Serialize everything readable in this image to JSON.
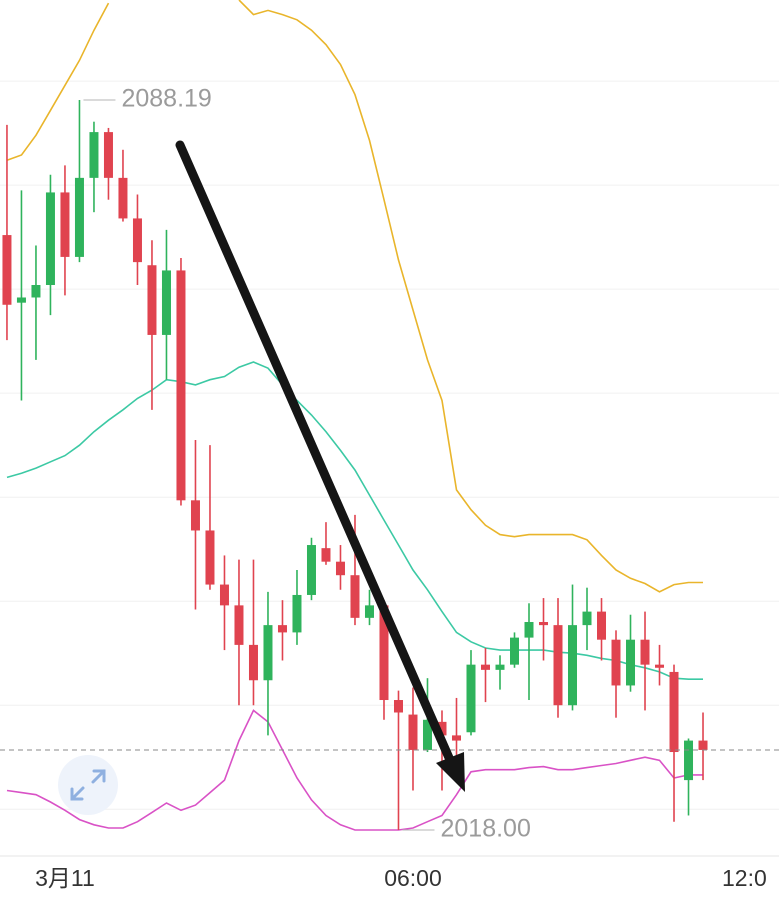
{
  "chart_data": {
    "type": "candlestick",
    "xlim": [
      -1.12,
      12.31
    ],
    "ylim": [
      2015.6,
      2097.8
    ],
    "xticks": [
      {
        "value": 0,
        "label": "3月11"
      },
      {
        "value": 6,
        "label": "06:00"
      },
      {
        "value": 12,
        "label": "12:0"
      }
    ],
    "yticks": [
      2020,
      2030,
      2040,
      2050,
      2060,
      2070,
      2080,
      2090
    ],
    "grid": true,
    "up_color": "#2fb35c",
    "down_color": "#e0434f",
    "x": [
      -1,
      -0.75,
      -0.5,
      -0.25,
      0,
      0.25,
      0.5,
      0.75,
      1,
      1.25,
      1.5,
      1.75,
      2,
      2.25,
      2.5,
      2.75,
      3,
      3.25,
      3.5,
      3.75,
      4,
      4.25,
      4.5,
      4.75,
      5,
      5.25,
      5.5,
      5.75,
      6,
      6.25,
      6.5,
      6.75,
      7,
      7.25,
      7.5,
      7.75,
      8,
      8.25,
      8.5,
      8.75,
      9,
      9.25,
      9.5,
      9.75,
      10,
      10.25,
      10.5,
      10.75,
      11
    ],
    "open": [
      2075.2,
      2068.7,
      2069.2,
      2070.4,
      2079.3,
      2073.1,
      2080.7,
      2085.1,
      2080.7,
      2076.8,
      2072.3,
      2065.6,
      2071.8,
      2049.7,
      2046.8,
      2041.6,
      2039.6,
      2035.8,
      2032.4,
      2037.7,
      2037.0,
      2040.6,
      2045.1,
      2043.8,
      2042.5,
      2038.4,
      2039.6,
      2030.5,
      2029.1,
      2025.7,
      2028.4,
      2027.1,
      2027.4,
      2033.9,
      2033.4,
      2033.9,
      2036.5,
      2038.0,
      2037.7,
      2030.0,
      2037.7,
      2039.0,
      2036.3,
      2031.9,
      2036.3,
      2033.9,
      2033.2,
      2022.8,
      2026.6
    ],
    "high": [
      2085.8,
      2079.5,
      2074.2,
      2081.0,
      2081.9,
      2088.19,
      2086.1,
      2085.5,
      2083.4,
      2079.1,
      2074.7,
      2075.7,
      2073.0,
      2055.5,
      2055.0,
      2044.4,
      2044.0,
      2044.0,
      2040.9,
      2040.1,
      2043.0,
      2046.1,
      2047.6,
      2045.4,
      2048.3,
      2041.1,
      2040.1,
      2031.4,
      2031.7,
      2032.6,
      2029.5,
      2030.7,
      2035.3,
      2035.5,
      2034.8,
      2037.0,
      2039.8,
      2040.3,
      2040.3,
      2041.6,
      2041.3,
      2040.3,
      2037.2,
      2038.7,
      2039.0,
      2035.8,
      2033.9,
      2026.8,
      2029.3
    ],
    "low": [
      2065.1,
      2059.3,
      2063.2,
      2067.5,
      2069.4,
      2072.6,
      2077.4,
      2078.6,
      2076.5,
      2070.4,
      2058.4,
      2061.3,
      2049.2,
      2039.2,
      2041.1,
      2035.3,
      2030.0,
      2030.0,
      2027.1,
      2034.3,
      2035.8,
      2040.1,
      2043.5,
      2041.1,
      2037.7,
      2037.7,
      2028.6,
      2018.0,
      2021.8,
      2025.5,
      2021.8,
      2024.7,
      2027.1,
      2030.3,
      2031.5,
      2033.6,
      2030.5,
      2034.3,
      2028.8,
      2029.5,
      2035.3,
      2034.3,
      2028.8,
      2031.3,
      2029.5,
      2031.9,
      2018.8,
      2019.4,
      2022.8
    ],
    "close": [
      2068.5,
      2069.2,
      2070.4,
      2079.3,
      2073.1,
      2080.7,
      2085.1,
      2080.7,
      2076.8,
      2072.6,
      2065.6,
      2071.8,
      2049.7,
      2046.8,
      2041.6,
      2039.6,
      2035.8,
      2032.4,
      2037.7,
      2037.0,
      2040.6,
      2045.4,
      2043.8,
      2042.5,
      2038.4,
      2039.6,
      2030.5,
      2029.3,
      2025.7,
      2028.6,
      2027.1,
      2026.6,
      2033.9,
      2033.4,
      2033.9,
      2036.5,
      2038.0,
      2037.7,
      2030.0,
      2037.7,
      2039.0,
      2036.3,
      2031.9,
      2036.3,
      2033.9,
      2033.6,
      2025.5,
      2026.6,
      2025.7
    ],
    "lines": [
      {
        "color": "#e9b52b",
        "values": [
          2082.4,
          2082.9,
          2084.8,
          2087.2,
          2089.6,
          2092.0,
          2094.9,
          2097.5,
          null,
          null,
          null,
          null,
          null,
          null,
          null,
          null,
          2097.8,
          2096.4,
          2096.8,
          2096.4,
          2095.9,
          2094.9,
          2093.5,
          2091.6,
          2088.7,
          2084.3,
          2078.6,
          2072.8,
          2068.0,
          2063.2,
          2059.3,
          2050.7,
          2048.8,
          2047.3,
          2046.4,
          2046.2,
          2046.4,
          2046.4,
          2046.4,
          2046.4,
          2045.9,
          2044.4,
          2043.0,
          2042.2,
          2041.7,
          2040.9,
          2041.6,
          2041.8,
          2041.8
        ]
      },
      {
        "color": "#3cc9a4",
        "values": [
          2051.9,
          2052.3,
          2052.8,
          2053.4,
          2054.0,
          2055.0,
          2056.3,
          2057.4,
          2058.4,
          2059.5,
          2060.3,
          2061.3,
          2061.1,
          2060.8,
          2061.3,
          2061.6,
          2062.5,
          2063.0,
          2062.4,
          2060.8,
          2059.3,
          2057.9,
          2056.3,
          2054.5,
          2052.6,
          2050.2,
          2047.8,
          2045.4,
          2043.0,
          2041.1,
          2039.0,
          2037.0,
          2036.1,
          2035.5,
          2035.3,
          2035.3,
          2035.3,
          2035.3,
          2035.1,
          2035.0,
          2034.8,
          2034.5,
          2034.3,
          2033.9,
          2033.6,
          2033.2,
          2032.6,
          2032.5,
          2032.5
        ]
      },
      {
        "color": "#d952c6",
        "values": [
          2021.8,
          2021.6,
          2021.4,
          2020.7,
          2019.9,
          2019.0,
          2018.5,
          2018.2,
          2018.2,
          2018.8,
          2019.7,
          2020.6,
          2019.9,
          2020.4,
          2021.6,
          2022.8,
          2026.6,
          2029.5,
          2028.4,
          2025.7,
          2023.0,
          2020.9,
          2019.4,
          2018.5,
          2018.0,
          2018.0,
          2018.0,
          2018.0,
          2018.2,
          2018.8,
          2019.4,
          2021.4,
          2023.6,
          2023.8,
          2023.8,
          2023.8,
          2024.0,
          2024.1,
          2023.8,
          2023.8,
          2024.0,
          2024.2,
          2024.4,
          2024.7,
          2025.0,
          2024.7,
          2023.0,
          2023.3,
          2023.3
        ]
      }
    ],
    "high_label": 2088.19,
    "low_label": {
      "value": 2018,
      "label": "2018.00"
    }
  }
}
